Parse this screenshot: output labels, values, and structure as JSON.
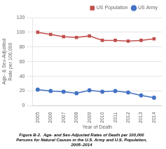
{
  "chart_data": {
    "type": "line",
    "caption": [
      "Figure B-2.  Age- and Sex-Adjusted Rates of Death per 100,000",
      "Persons for Natural Causes in the U.S. Army and U.S. Population,",
      "2005–2014"
    ],
    "xlabel": "Year of Death",
    "ylabel": "Age- & Sex-Adjusted\nRate per 100,000",
    "x": [
      2005,
      2006,
      2007,
      2008,
      2009,
      2010,
      2011,
      2012,
      2013,
      2014
    ],
    "series": [
      {
        "name": "US Population",
        "color": "#c0504d",
        "marker": "square",
        "values": [
          100,
          97,
          94,
          93,
          95,
          89,
          89,
          88,
          89,
          91
        ]
      },
      {
        "name": "US Army",
        "color": "#4472c4",
        "marker": "circle",
        "values": [
          22,
          20,
          19,
          17,
          21,
          19,
          20,
          18,
          14,
          11
        ]
      }
    ],
    "xlim": [
      2004.6,
      2014.6
    ],
    "xticks": [
      2005,
      2006,
      2007,
      2008,
      2009,
      2010,
      2011,
      2012,
      2013,
      2014
    ],
    "ylim": [
      0,
      120
    ],
    "yticks": [
      0,
      20,
      40,
      60,
      80,
      100,
      120
    ],
    "grid": "y",
    "legend": "upper right"
  }
}
